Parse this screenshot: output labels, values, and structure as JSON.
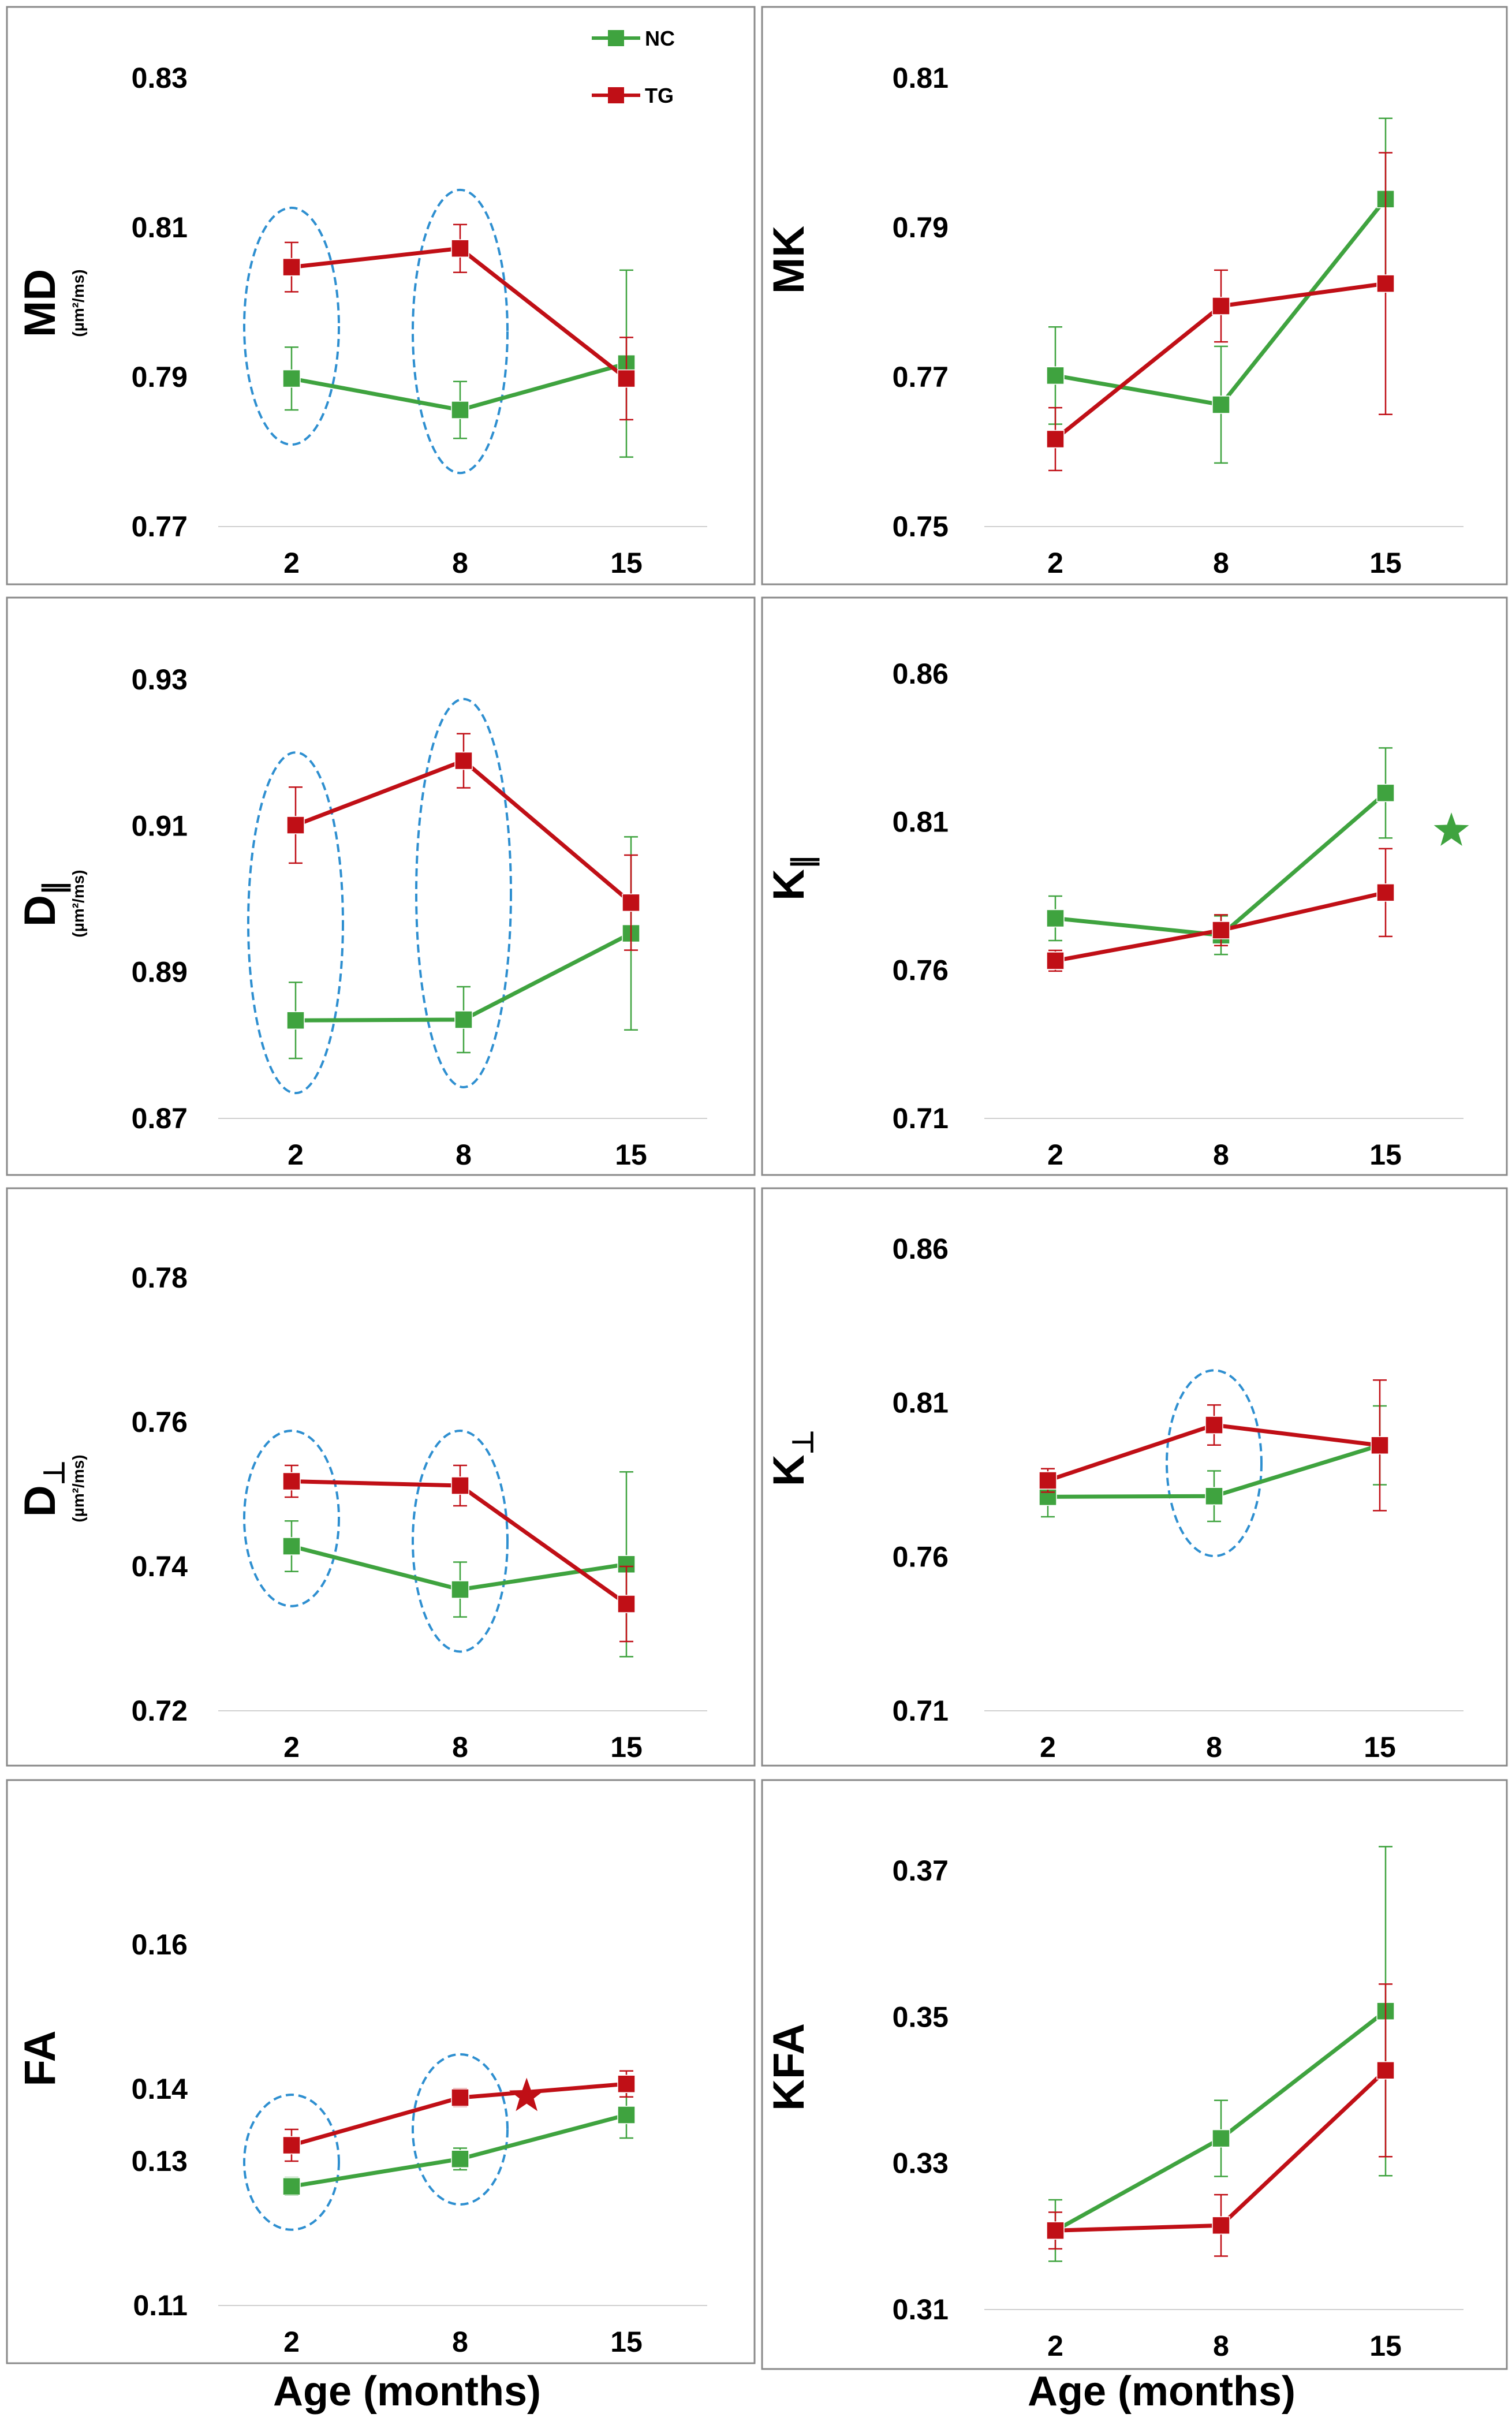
{
  "colors": {
    "NC": "#3fa33f",
    "TG": "#c00f16",
    "ellipse": "#2e8fd0",
    "frame": "#8a8a8a",
    "grid": "#d0d0d0"
  },
  "legend": [
    {
      "name": "NC",
      "color": "#3fa33f"
    },
    {
      "name": "TG",
      "color": "#c00f16"
    }
  ],
  "x_axis_label_left": "Age  (months)",
  "x_axis_label_right": "Age  (months)",
  "chart_data": [
    {
      "id": "md",
      "type": "line",
      "ylabel": "MD",
      "yunit": "(µm²/ms)",
      "categories": [
        "2",
        "8",
        "15"
      ],
      "ylim": [
        0.77,
        0.83
      ],
      "yticks": [
        0.77,
        0.79,
        0.81,
        0.83
      ],
      "ytick_labels": [
        "0.77",
        "0.79",
        "0.81",
        "0.83"
      ],
      "series": [
        {
          "name": "NC",
          "values": [
            0.7898,
            0.7856,
            0.7918
          ],
          "err": [
            0.0042,
            0.0038,
            0.0125
          ]
        },
        {
          "name": "TG",
          "values": [
            0.8047,
            0.8072,
            0.7898
          ],
          "err": [
            0.0033,
            0.0032,
            0.0055
          ]
        }
      ],
      "highlight_ellipses": [
        "2",
        "8"
      ],
      "star": null
    },
    {
      "id": "mk",
      "type": "line",
      "ylabel": "MK",
      "yunit": "",
      "categories": [
        "2",
        "8",
        "15"
      ],
      "ylim": [
        0.75,
        0.81
      ],
      "yticks": [
        0.75,
        0.77,
        0.79,
        0.81
      ],
      "ytick_labels": [
        "0.75",
        "0.77",
        "0.79",
        "0.81"
      ],
      "series": [
        {
          "name": "NC",
          "values": [
            0.7702,
            0.7663,
            0.7938
          ],
          "err": [
            0.0065,
            0.0078,
            0.0108
          ]
        },
        {
          "name": "TG",
          "values": [
            0.7617,
            0.7795,
            0.7825
          ],
          "err": [
            0.0042,
            0.0048,
            0.0175
          ]
        }
      ],
      "highlight_ellipses": [],
      "star": null
    },
    {
      "id": "dpar",
      "type": "line",
      "ylabel": "D∥",
      "yunit": "(µm²/ms)",
      "categories": [
        "2",
        "8",
        "15"
      ],
      "ylim": [
        0.87,
        0.93
      ],
      "yticks": [
        0.87,
        0.89,
        0.91,
        0.93
      ],
      "ytick_labels": [
        "0.87",
        "0.89",
        "0.91",
        "0.93"
      ],
      "series": [
        {
          "name": "NC",
          "values": [
            0.8834,
            0.8835,
            0.8953
          ],
          "err": [
            0.0052,
            0.0045,
            0.0132
          ]
        },
        {
          "name": "TG",
          "values": [
            0.9101,
            0.9189,
            0.8995
          ],
          "err": [
            0.0052,
            0.0037,
            0.0065
          ]
        }
      ],
      "highlight_ellipses": [
        "2",
        "8"
      ],
      "star": null
    },
    {
      "id": "kpar",
      "type": "line",
      "ylabel": "K∥",
      "yunit": "",
      "categories": [
        "2",
        "8",
        "15"
      ],
      "ylim": [
        0.71,
        0.86
      ],
      "yticks": [
        0.71,
        0.76,
        0.81,
        0.86
      ],
      "ytick_labels": [
        "0.71",
        "0.76",
        "0.81",
        "0.86"
      ],
      "series": [
        {
          "name": "NC",
          "values": [
            0.7775,
            0.7718,
            0.8198
          ],
          "err": [
            0.0075,
            0.0065,
            0.0152
          ]
        },
        {
          "name": "TG",
          "values": [
            0.7632,
            0.7735,
            0.7862
          ],
          "err": [
            0.0035,
            0.0052,
            0.0148
          ]
        }
      ],
      "highlight_ellipses": [],
      "star": {
        "color": "NC",
        "x": 2.4,
        "y": 0.807
      }
    },
    {
      "id": "dperp",
      "type": "line",
      "ylabel": "D⊥",
      "yunit": "(µm²/ms)",
      "categories": [
        "2",
        "8",
        "15"
      ],
      "ylim": [
        0.72,
        0.78
      ],
      "yticks": [
        0.72,
        0.74,
        0.76,
        0.78
      ],
      "ytick_labels": [
        "0.72",
        "0.74",
        "0.76",
        "0.78"
      ],
      "series": [
        {
          "name": "NC",
          "values": [
            0.7428,
            0.7368,
            0.7403
          ],
          "err": [
            0.0035,
            0.0038,
            0.0128
          ]
        },
        {
          "name": "TG",
          "values": [
            0.7518,
            0.7512,
            0.7348
          ],
          "err": [
            0.0022,
            0.0028,
            0.0052
          ]
        }
      ],
      "highlight_ellipses": [
        "2",
        "8"
      ],
      "star": null
    },
    {
      "id": "kperp",
      "type": "line",
      "ylabel": "K⊥",
      "yunit": "",
      "categories": [
        "2",
        "8",
        "15"
      ],
      "ylim": [
        0.71,
        0.86
      ],
      "yticks": [
        0.71,
        0.76,
        0.81,
        0.86
      ],
      "ytick_labels": [
        "0.71",
        "0.76",
        "0.81",
        "0.86"
      ],
      "series": [
        {
          "name": "NC",
          "values": [
            0.7795,
            0.7797,
            0.7962
          ],
          "err": [
            0.0065,
            0.0082,
            0.0128
          ]
        },
        {
          "name": "TG",
          "values": [
            0.7848,
            0.8028,
            0.7962
          ],
          "err": [
            0.0038,
            0.0065,
            0.0212
          ]
        }
      ],
      "highlight_ellipses": [
        "8"
      ],
      "star": null
    },
    {
      "id": "fa",
      "type": "line",
      "ylabel": "FA",
      "yunit": "",
      "categories": [
        "2",
        "8",
        "15"
      ],
      "ylim": [
        0.11,
        0.17
      ],
      "yticks": [
        0.11,
        0.13,
        0.14,
        0.16
      ],
      "ytick_labels": [
        "0.11",
        "0.13",
        "0.14",
        "0.16"
      ],
      "series": [
        {
          "name": "NC",
          "values": [
            0.1265,
            0.1303,
            0.1364
          ],
          "err": [
            0.0012,
            0.0015,
            0.0032
          ]
        },
        {
          "name": "TG",
          "values": [
            0.1322,
            0.1388,
            0.1407
          ],
          "err": [
            0.0022,
            0.0012,
            0.0018
          ]
        }
      ],
      "highlight_ellipses": [
        "2",
        "8"
      ],
      "star": {
        "color": "TG",
        "x": 1.4,
        "y": 0.139
      }
    },
    {
      "id": "kfa",
      "type": "line",
      "ylabel": "KFA",
      "yunit": "",
      "categories": [
        "2",
        "8",
        "15"
      ],
      "ylim": [
        0.31,
        0.37
      ],
      "yticks": [
        0.31,
        0.33,
        0.35,
        0.37
      ],
      "ytick_labels": [
        "0.31",
        "0.33",
        "0.35",
        "0.37"
      ],
      "series": [
        {
          "name": "NC",
          "values": [
            0.3208,
            0.3334,
            0.3508
          ],
          "err": [
            0.0042,
            0.0052,
            0.0225
          ]
        },
        {
          "name": "TG",
          "values": [
            0.3208,
            0.3215,
            0.3427
          ],
          "err": [
            0.0025,
            0.0042,
            0.0118
          ]
        }
      ],
      "highlight_ellipses": [],
      "star": null
    }
  ]
}
